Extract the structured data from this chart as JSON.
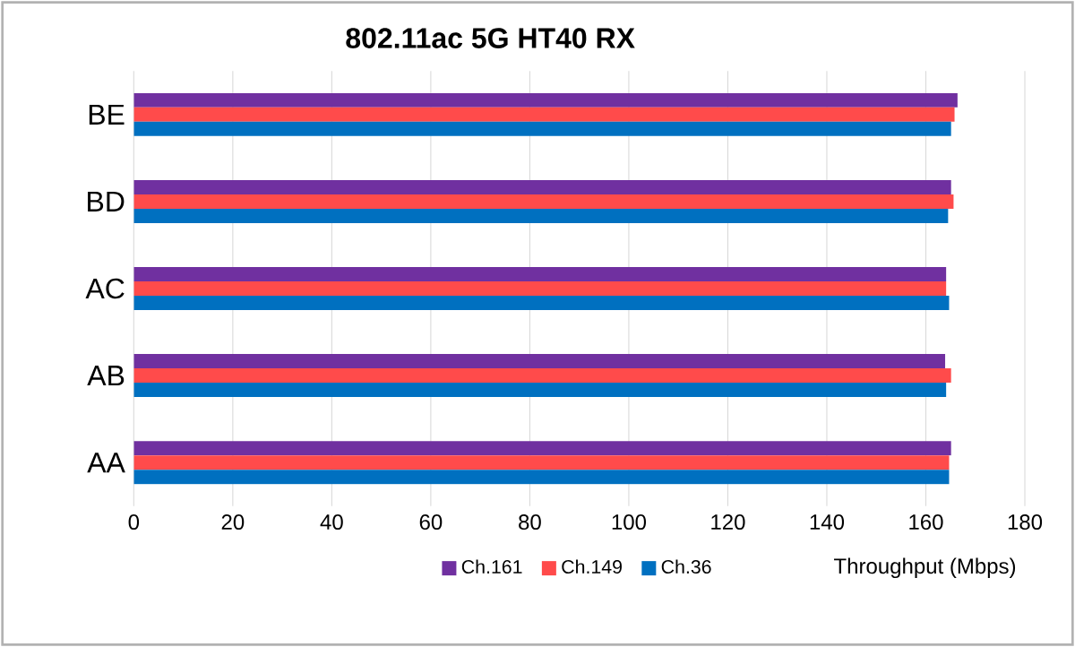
{
  "chart_data": {
    "type": "bar",
    "orientation": "horizontal",
    "title": "802.11ac 5G HT40 RX",
    "xlabel": "Throughput (Mbps)",
    "categories": [
      "BE",
      "BD",
      "AC",
      "AB",
      "AA"
    ],
    "series": [
      {
        "name": "Ch.161",
        "color": "#7030a0",
        "values": [
          166.4,
          165.1,
          164.1,
          163.9,
          165.1
        ]
      },
      {
        "name": "Ch.149",
        "color": "#ff4b4b",
        "values": [
          165.8,
          165.6,
          164.1,
          165.1,
          164.7
        ]
      },
      {
        "name": "Ch.36",
        "color": "#0070c0",
        "values": [
          165.1,
          164.5,
          164.7,
          164.1,
          164.7
        ]
      }
    ],
    "xlim": [
      0,
      180
    ],
    "xticks": [
      0,
      20,
      40,
      60,
      80,
      100,
      120,
      140,
      160,
      180
    ],
    "grid": "x",
    "legend": "bottom"
  }
}
